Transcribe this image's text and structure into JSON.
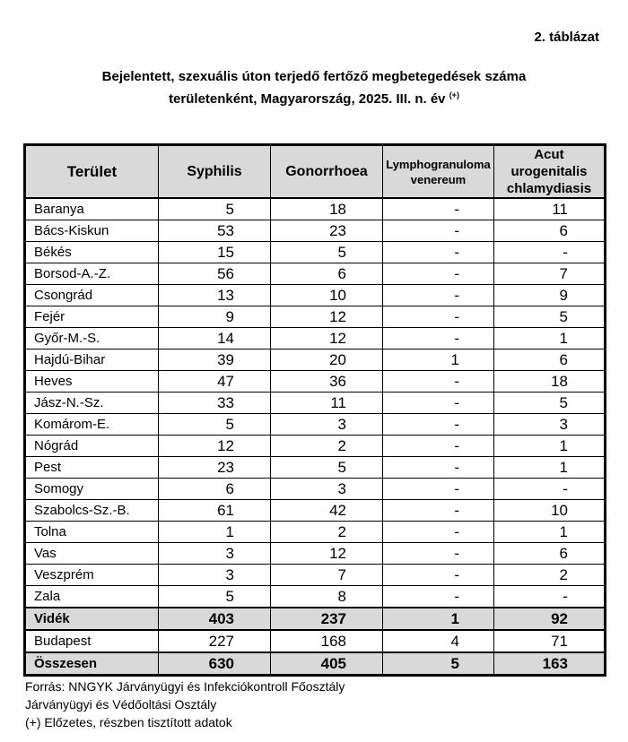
{
  "table_number": "2. táblázat",
  "title_line1": "Bejelentett, szexuális úton terjedő fertőző megbetegedések száma",
  "title_line2": "területenként, Magyarország, 2025. III. n. év",
  "title_note": "(+)",
  "headers": [
    "Terület",
    "Syphilis",
    "Gonorrhoea",
    [
      "Lymphogranuloma",
      "venereum"
    ],
    [
      "Acut",
      "urogenitalis",
      "chlamydiasis"
    ]
  ],
  "rows": [
    [
      "Baranya",
      "5",
      "18",
      "-",
      "11"
    ],
    [
      "Bács-Kiskun",
      "53",
      "23",
      "-",
      "6"
    ],
    [
      "Békés",
      "15",
      "5",
      "-",
      "-"
    ],
    [
      "Borsod-A.-Z.",
      "56",
      "6",
      "-",
      "7"
    ],
    [
      "Csongrád",
      "13",
      "10",
      "-",
      "9"
    ],
    [
      "Fejér",
      "9",
      "12",
      "-",
      "5"
    ],
    [
      "Győr-M.-S.",
      "14",
      "12",
      "-",
      "1"
    ],
    [
      "Hajdú-Bihar",
      "39",
      "20",
      "1",
      "6"
    ],
    [
      "Heves",
      "47",
      "36",
      "-",
      "18"
    ],
    [
      "Jász-N.-Sz.",
      "33",
      "11",
      "-",
      "5"
    ],
    [
      "Komárom-E.",
      "5",
      "3",
      "-",
      "3"
    ],
    [
      "Nógrád",
      "12",
      "2",
      "-",
      "1"
    ],
    [
      "Pest",
      "23",
      "5",
      "-",
      "1"
    ],
    [
      "Somogy",
      "6",
      "3",
      "-",
      "-"
    ],
    [
      "Szabolcs-Sz.-B.",
      "61",
      "42",
      "-",
      "10"
    ],
    [
      "Tolna",
      "1",
      "2",
      "-",
      "1"
    ],
    [
      "Vas",
      "3",
      "12",
      "-",
      "6"
    ],
    [
      "Veszprém",
      "3",
      "7",
      "-",
      "2"
    ],
    [
      "Zala",
      "5",
      "8",
      "-",
      "-"
    ]
  ],
  "videk": [
    "Vidék",
    "403",
    "237",
    "1",
    "92"
  ],
  "budapest": [
    "Budapest",
    "227",
    "168",
    "4",
    "71"
  ],
  "osszesen": [
    "Összesen",
    "630",
    "405",
    "5",
    "163"
  ],
  "footer": [
    "Forrás: NNGYK Járványügyi és Infekciókontroll Főosztály",
    "Járványügyi és Védőoltási Osztály",
    "(+) Előzetes, részben tisztított adatok"
  ]
}
